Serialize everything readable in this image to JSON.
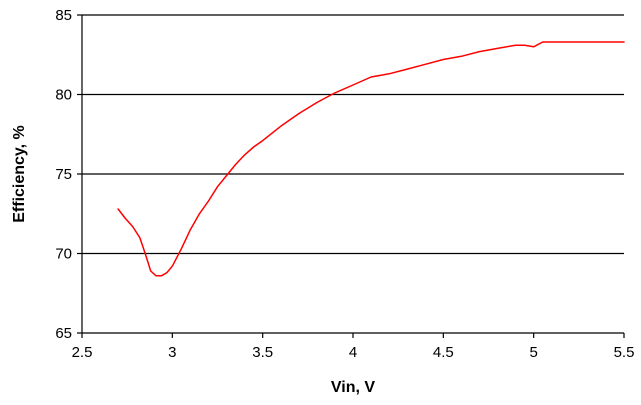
{
  "chart_data": {
    "type": "line",
    "title": "",
    "xlabel": "Vin, V",
    "ylabel": "Efficiency, %",
    "xlim": [
      2.5,
      5.5
    ],
    "ylim": [
      65,
      85
    ],
    "x_ticks": [
      2.5,
      3,
      3.5,
      4,
      4.5,
      5,
      5.5
    ],
    "x_tick_labels": [
      "2.5",
      "3",
      "3.5",
      "4",
      "4.5",
      "5",
      "5.5"
    ],
    "y_ticks": [
      65,
      70,
      75,
      80,
      85
    ],
    "y_tick_labels": [
      "65",
      "70",
      "75",
      "80",
      "85"
    ],
    "grid": {
      "horizontal": true,
      "vertical": false
    },
    "legend": "none",
    "series": [
      {
        "color": "#ff0000",
        "x": [
          2.7,
          2.74,
          2.78,
          2.82,
          2.85,
          2.88,
          2.91,
          2.94,
          2.97,
          3.0,
          3.05,
          3.1,
          3.15,
          3.2,
          3.25,
          3.3,
          3.35,
          3.4,
          3.45,
          3.5,
          3.6,
          3.7,
          3.8,
          3.9,
          4.0,
          4.1,
          4.2,
          4.3,
          4.4,
          4.5,
          4.6,
          4.7,
          4.8,
          4.9,
          4.95,
          5.0,
          5.05,
          5.1,
          5.2,
          5.3,
          5.4,
          5.5
        ],
        "y": [
          72.8,
          72.2,
          71.7,
          71.0,
          70.0,
          68.9,
          68.6,
          68.6,
          68.8,
          69.2,
          70.3,
          71.5,
          72.5,
          73.3,
          74.2,
          74.9,
          75.6,
          76.2,
          76.7,
          77.1,
          78.0,
          78.8,
          79.5,
          80.1,
          80.6,
          81.1,
          81.3,
          81.6,
          81.9,
          82.2,
          82.4,
          82.7,
          82.9,
          83.1,
          83.1,
          83.0,
          83.3,
          83.3,
          83.3,
          83.3,
          83.3,
          83.3
        ]
      }
    ]
  }
}
